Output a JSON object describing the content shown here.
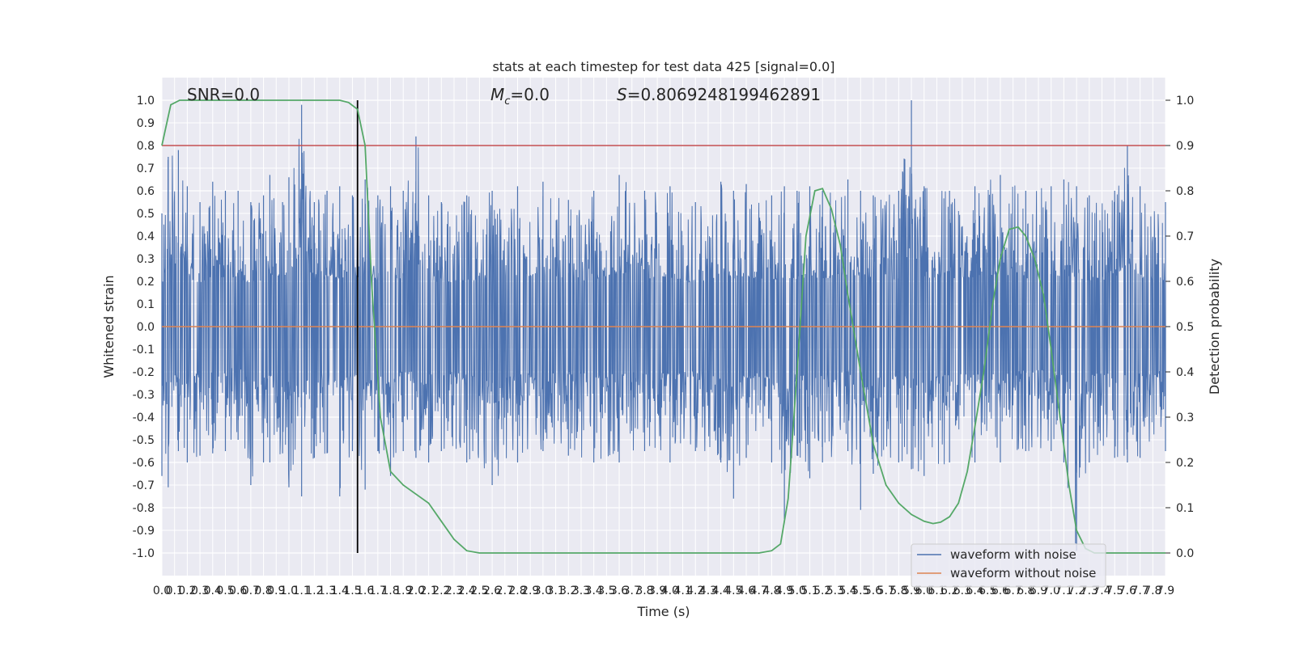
{
  "chart_data": {
    "type": "line",
    "title": "stats at each timestep for test data 425 [signal=0.0]",
    "xlabel": "Time (s)",
    "ylabel": "Whitened strain",
    "ylabel_right": "Detection probability",
    "annotations": {
      "snr": "SNR=0.0",
      "mc_symbol": "M",
      "mc_subscript": "c",
      "mc_value": "=0.0",
      "s_symbol": "S",
      "s_value": "=0.8069248199462891"
    },
    "xlim": [
      0.0,
      7.9
    ],
    "ylim": [
      -1.1,
      1.1
    ],
    "ylim_right": [
      -0.05,
      1.05
    ],
    "x_ticks": [
      0.0,
      0.1,
      0.2,
      0.3,
      0.4,
      0.5,
      0.6,
      0.7,
      0.8,
      0.9,
      1.0,
      1.1,
      1.2,
      1.3,
      1.4,
      1.5,
      1.6,
      1.7,
      1.8,
      1.9,
      2.0,
      2.1,
      2.2,
      2.3,
      2.4,
      2.5,
      2.6,
      2.7,
      2.8,
      2.9,
      3.0,
      3.1,
      3.2,
      3.3,
      3.4,
      3.5,
      3.6,
      3.7,
      3.8,
      3.9,
      4.0,
      4.1,
      4.2,
      4.3,
      4.4,
      4.5,
      4.6,
      4.7,
      4.8,
      4.9,
      5.0,
      5.1,
      5.2,
      5.3,
      5.4,
      5.5,
      5.6,
      5.7,
      5.8,
      5.9,
      6.0,
      6.1,
      6.2,
      6.3,
      6.4,
      6.5,
      6.6,
      6.7,
      6.8,
      6.9,
      7.0,
      7.1,
      7.2,
      7.3,
      7.4,
      7.5,
      7.6,
      7.7,
      7.8,
      7.9
    ],
    "y_ticks": [
      -1.0,
      -0.9,
      -0.8,
      -0.7,
      -0.6,
      -0.5,
      -0.4,
      -0.3,
      -0.2,
      -0.1,
      0.0,
      0.1,
      0.2,
      0.3,
      0.4,
      0.5,
      0.6,
      0.7,
      0.8,
      0.9,
      1.0
    ],
    "y_ticks_right": [
      0.0,
      0.1,
      0.2,
      0.3,
      0.4,
      0.5,
      0.6,
      0.7,
      0.8,
      0.9,
      1.0
    ],
    "grid": true,
    "legend_placement": "lower right",
    "threshold_line": {
      "axis": "right",
      "y": 0.9,
      "color": "#c44e52"
    },
    "marker_line": {
      "x": 1.54,
      "color": "#000000"
    },
    "series": [
      {
        "name": "waveform with noise",
        "color": "#4c72b0",
        "axis": "left",
        "note": "dense noise envelope; peaks (time, upper, lower)",
        "envelope_points": [
          [
            0.0,
            0.5,
            -0.66
          ],
          [
            0.05,
            0.75,
            -0.71
          ],
          [
            0.13,
            0.78,
            -0.55
          ],
          [
            0.2,
            0.62,
            -0.6
          ],
          [
            0.3,
            0.55,
            -0.57
          ],
          [
            0.4,
            0.64,
            -0.56
          ],
          [
            0.5,
            0.6,
            -0.55
          ],
          [
            0.6,
            0.6,
            -0.5
          ],
          [
            0.7,
            0.55,
            -0.7
          ],
          [
            0.8,
            0.58,
            -0.6
          ],
          [
            0.85,
            0.67,
            -0.6
          ],
          [
            0.95,
            0.55,
            -0.56
          ],
          [
            1.0,
            0.66,
            -0.71
          ],
          [
            1.1,
            0.98,
            -0.75
          ],
          [
            1.2,
            0.55,
            -0.58
          ],
          [
            1.3,
            0.6,
            -0.56
          ],
          [
            1.4,
            0.62,
            -0.75
          ],
          [
            1.5,
            0.58,
            -0.55
          ],
          [
            1.6,
            0.65,
            -0.72
          ],
          [
            1.7,
            0.58,
            -0.55
          ],
          [
            1.8,
            0.62,
            -0.66
          ],
          [
            1.9,
            0.6,
            -0.55
          ],
          [
            2.0,
            0.84,
            -0.58
          ],
          [
            2.1,
            0.58,
            -0.6
          ],
          [
            2.2,
            0.55,
            -0.55
          ],
          [
            2.4,
            0.58,
            -0.6
          ],
          [
            2.6,
            0.6,
            -0.7
          ],
          [
            2.8,
            0.62,
            -0.6
          ],
          [
            3.0,
            0.64,
            -0.55
          ],
          [
            3.2,
            0.56,
            -0.57
          ],
          [
            3.4,
            0.6,
            -0.6
          ],
          [
            3.6,
            0.67,
            -0.6
          ],
          [
            3.8,
            0.6,
            -0.55
          ],
          [
            4.0,
            0.62,
            -0.6
          ],
          [
            4.2,
            0.55,
            -0.55
          ],
          [
            4.4,
            0.64,
            -0.6
          ],
          [
            4.5,
            0.6,
            -0.76
          ],
          [
            4.6,
            0.63,
            -0.58
          ],
          [
            4.8,
            0.58,
            -0.6
          ],
          [
            4.9,
            0.62,
            -0.85
          ],
          [
            5.0,
            0.6,
            -0.57
          ],
          [
            5.1,
            0.62,
            -0.67
          ],
          [
            5.2,
            0.6,
            -0.6
          ],
          [
            5.4,
            0.65,
            -0.55
          ],
          [
            5.5,
            0.6,
            -0.81
          ],
          [
            5.6,
            0.58,
            -0.65
          ],
          [
            5.8,
            0.6,
            -0.6
          ],
          [
            5.9,
            1.0,
            -0.63
          ],
          [
            6.0,
            0.62,
            -0.66
          ],
          [
            6.2,
            0.6,
            -0.6
          ],
          [
            6.4,
            0.62,
            -0.6
          ],
          [
            6.6,
            0.67,
            -0.6
          ],
          [
            6.8,
            0.6,
            -0.55
          ],
          [
            7.0,
            0.62,
            -0.55
          ],
          [
            7.1,
            0.65,
            -0.6
          ],
          [
            7.2,
            0.62,
            -0.99
          ],
          [
            7.3,
            0.58,
            -0.6
          ],
          [
            7.5,
            0.6,
            -0.58
          ],
          [
            7.6,
            0.8,
            -0.6
          ],
          [
            7.7,
            0.62,
            -0.58
          ],
          [
            7.9,
            0.55,
            -0.55
          ]
        ]
      },
      {
        "name": "waveform without noise",
        "color": "#dd8452",
        "axis": "left",
        "values_const": 0.0
      },
      {
        "name": "",
        "color": "#55a868",
        "axis": "right",
        "points": [
          [
            0.0,
            0.9
          ],
          [
            0.07,
            0.99
          ],
          [
            0.14,
            1.0
          ],
          [
            0.5,
            1.0
          ],
          [
            1.0,
            1.0
          ],
          [
            1.4,
            1.0
          ],
          [
            1.47,
            0.995
          ],
          [
            1.54,
            0.98
          ],
          [
            1.6,
            0.9
          ],
          [
            1.65,
            0.6
          ],
          [
            1.72,
            0.3
          ],
          [
            1.8,
            0.18
          ],
          [
            1.9,
            0.15
          ],
          [
            2.0,
            0.13
          ],
          [
            2.1,
            0.11
          ],
          [
            2.2,
            0.07
          ],
          [
            2.3,
            0.03
          ],
          [
            2.4,
            0.005
          ],
          [
            2.5,
            0.0
          ],
          [
            3.0,
            0.0
          ],
          [
            4.0,
            0.0
          ],
          [
            4.5,
            0.0
          ],
          [
            4.7,
            0.0
          ],
          [
            4.8,
            0.005
          ],
          [
            4.87,
            0.02
          ],
          [
            4.93,
            0.12
          ],
          [
            5.0,
            0.4
          ],
          [
            5.07,
            0.7
          ],
          [
            5.14,
            0.8
          ],
          [
            5.2,
            0.805
          ],
          [
            5.27,
            0.76
          ],
          [
            5.34,
            0.68
          ],
          [
            5.4,
            0.57
          ],
          [
            5.5,
            0.4
          ],
          [
            5.6,
            0.24
          ],
          [
            5.7,
            0.15
          ],
          [
            5.8,
            0.11
          ],
          [
            5.9,
            0.085
          ],
          [
            6.0,
            0.07
          ],
          [
            6.07,
            0.065
          ],
          [
            6.13,
            0.068
          ],
          [
            6.2,
            0.08
          ],
          [
            6.27,
            0.11
          ],
          [
            6.34,
            0.18
          ],
          [
            6.4,
            0.28
          ],
          [
            6.47,
            0.4
          ],
          [
            6.54,
            0.55
          ],
          [
            6.6,
            0.65
          ],
          [
            6.67,
            0.715
          ],
          [
            6.74,
            0.72
          ],
          [
            6.8,
            0.7
          ],
          [
            6.87,
            0.65
          ],
          [
            6.94,
            0.57
          ],
          [
            7.0,
            0.45
          ],
          [
            7.07,
            0.3
          ],
          [
            7.14,
            0.15
          ],
          [
            7.2,
            0.05
          ],
          [
            7.27,
            0.01
          ],
          [
            7.34,
            0.0
          ],
          [
            7.5,
            0.0
          ],
          [
            7.9,
            0.0
          ]
        ]
      }
    ]
  },
  "legend": {
    "items": [
      {
        "label": "waveform with noise",
        "color": "#4c72b0"
      },
      {
        "label": "waveform without noise",
        "color": "#dd8452"
      }
    ]
  }
}
